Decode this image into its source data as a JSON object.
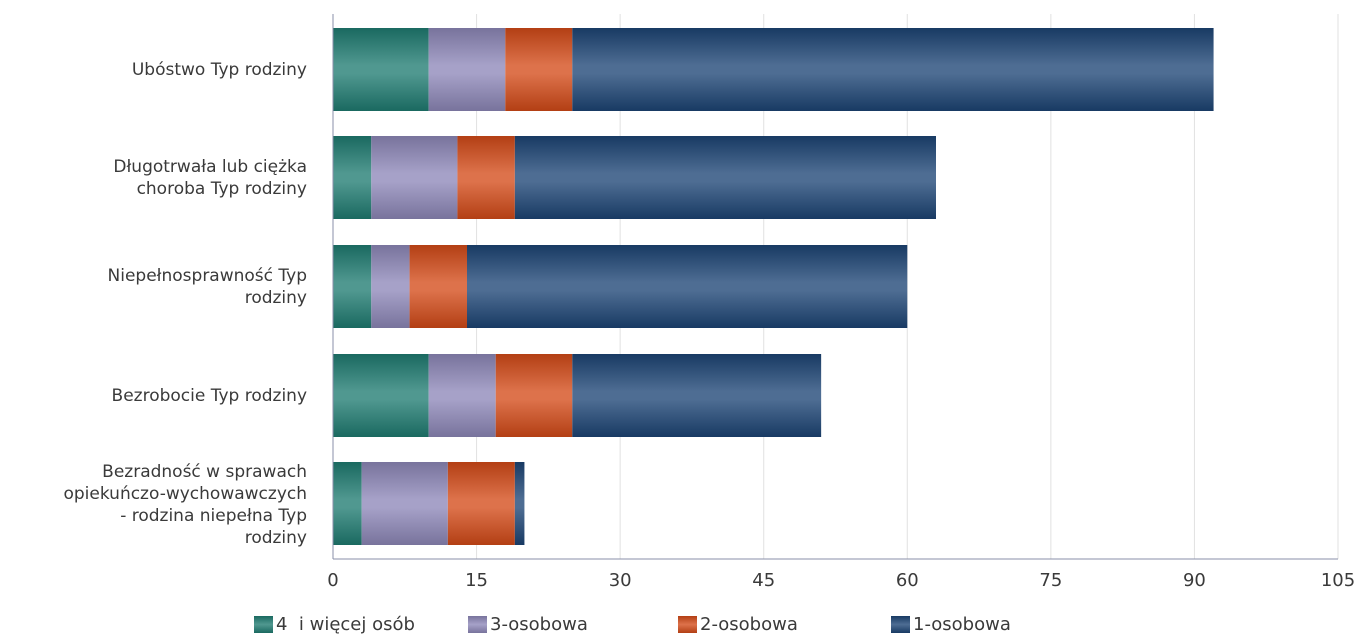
{
  "chart_data": {
    "type": "bar",
    "orientation": "horizontal",
    "stacked": true,
    "categories": [
      "Ubóstwo Typ rodziny",
      "Długotrwała lub ciężka choroba Typ rodziny",
      "Niepełnosprawność Typ rodziny",
      "Bezrobocie Typ rodziny",
      "Bezradność w sprawach opiekuńczo-wychowawczych - rodzina niepełna Typ rodziny"
    ],
    "category_lines": [
      [
        "Ubóstwo Typ rodziny"
      ],
      [
        "Długotrwała lub ciężka",
        "choroba Typ rodziny"
      ],
      [
        "Niepełnosprawność Typ",
        "rodziny"
      ],
      [
        "Bezrobocie Typ rodziny"
      ],
      [
        "Bezradność w sprawach",
        "opiekuńczo-wychowawczych",
        "- rodzina niepełna Typ",
        "rodziny"
      ]
    ],
    "series": [
      {
        "name": "4  i więcej osób",
        "color": "#1e7b71",
        "values": [
          10,
          4,
          4,
          10,
          3
        ]
      },
      {
        "name": "3-osobowa",
        "color": "#8d87b8",
        "values": [
          8,
          9,
          4,
          7,
          9
        ]
      },
      {
        "name": "2-osobowa",
        "color": "#d34a18",
        "values": [
          7,
          6,
          6,
          8,
          7
        ]
      },
      {
        "name": "1-osobowa",
        "color": "#1c4474",
        "values": [
          67,
          44,
          46,
          26,
          1
        ]
      }
    ],
    "xlim": [
      0,
      105
    ],
    "xticks": [
      "0",
      "15",
      "30",
      "45",
      "60",
      "75",
      "90",
      "105"
    ],
    "grid": true,
    "legend_position": "bottom",
    "title": "",
    "xlabel": "",
    "ylabel": ""
  }
}
